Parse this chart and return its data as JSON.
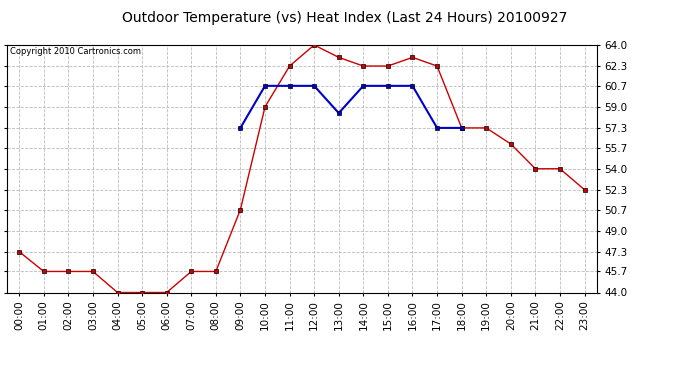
{
  "title": "Outdoor Temperature (vs) Heat Index (Last 24 Hours) 20100927",
  "copyright": "Copyright 2010 Cartronics.com",
  "hours": [
    "00:00",
    "01:00",
    "02:00",
    "03:00",
    "04:00",
    "05:00",
    "06:00",
    "07:00",
    "08:00",
    "09:00",
    "10:00",
    "11:00",
    "12:00",
    "13:00",
    "14:00",
    "15:00",
    "16:00",
    "17:00",
    "18:00",
    "19:00",
    "20:00",
    "21:00",
    "22:00",
    "23:00"
  ],
  "temp": [
    47.3,
    45.7,
    45.7,
    45.7,
    44.0,
    44.0,
    44.0,
    45.7,
    45.7,
    50.7,
    59.0,
    62.3,
    64.0,
    63.0,
    62.3,
    62.3,
    63.0,
    62.3,
    57.3,
    57.3,
    56.0,
    54.0,
    54.0,
    52.3
  ],
  "heat_index": [
    null,
    null,
    null,
    null,
    null,
    null,
    null,
    null,
    null,
    57.3,
    60.7,
    60.7,
    60.7,
    58.5,
    60.7,
    60.7,
    60.7,
    57.3,
    57.3,
    null,
    null,
    null,
    null,
    null
  ],
  "temp_color": "#cc0000",
  "heat_index_color": "#0000cc",
  "background_color": "#ffffff",
  "plot_bg_color": "#ffffff",
  "grid_color": "#bbbbbb",
  "title_fontsize": 10,
  "copyright_fontsize": 6,
  "tick_fontsize": 7.5,
  "ylim": [
    44.0,
    64.0
  ],
  "yticks": [
    44.0,
    45.7,
    47.3,
    49.0,
    50.7,
    52.3,
    54.0,
    55.7,
    57.3,
    59.0,
    60.7,
    62.3,
    64.0
  ]
}
